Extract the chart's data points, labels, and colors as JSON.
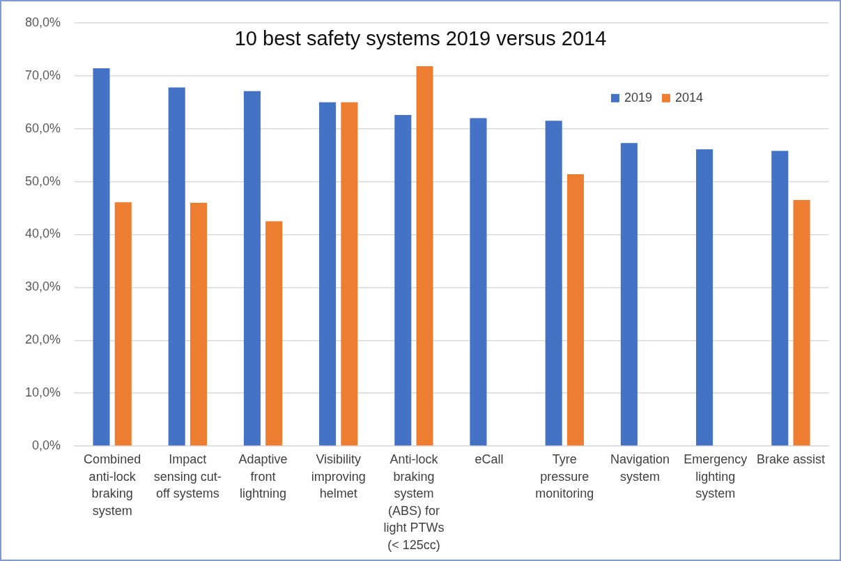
{
  "chart_data": {
    "type": "bar",
    "title": "10 best safety systems 2019 versus 2014",
    "categories": [
      "Combined anti-lock braking system",
      "Impact sensing cut-off systems",
      "Adaptive front lightning",
      "Visibility improving helmet",
      "Anti-lock braking system (ABS) for light PTWs (< 125cc)",
      "eCall",
      "Tyre pressure monitoring",
      "Navigation system",
      "Emergency lighting system",
      "Brake assist"
    ],
    "series": [
      {
        "name": "2019",
        "color": "#4472c4",
        "values": [
          71.4,
          67.8,
          67.1,
          65.0,
          62.6,
          62.0,
          61.5,
          57.3,
          56.1,
          55.8
        ]
      },
      {
        "name": "2014",
        "color": "#ed7d31",
        "values": [
          46.1,
          46.0,
          42.5,
          65.0,
          71.8,
          null,
          51.4,
          null,
          null,
          46.5
        ]
      }
    ],
    "ylim": [
      0,
      80
    ],
    "yticks": [
      {
        "value": 0,
        "label": "0,0%"
      },
      {
        "value": 10,
        "label": "10,0%"
      },
      {
        "value": 20,
        "label": "20,0%"
      },
      {
        "value": 30,
        "label": "30,0%"
      },
      {
        "value": 40,
        "label": "40,0%"
      },
      {
        "value": 50,
        "label": "50,0%"
      },
      {
        "value": 60,
        "label": "60,0%"
      },
      {
        "value": 70,
        "label": "70,0%"
      },
      {
        "value": 80,
        "label": "80,0%"
      }
    ],
    "grid": "y",
    "legend": "top right"
  }
}
